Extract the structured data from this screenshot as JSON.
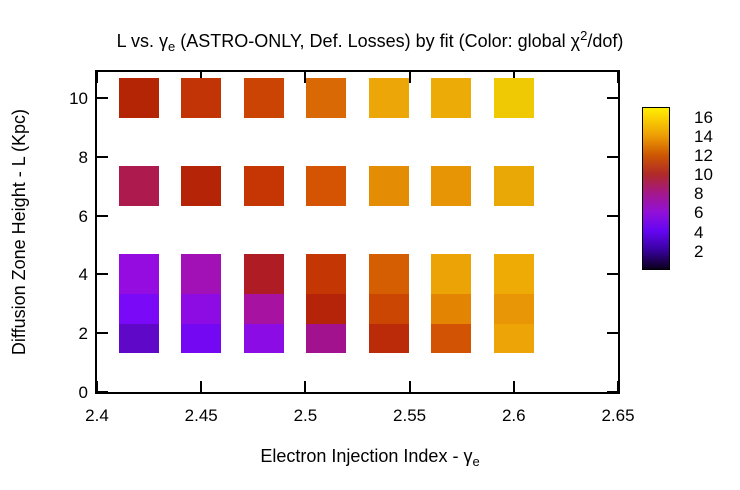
{
  "title_parts": [
    {
      "t": "L vs. "
    },
    {
      "t": "γ"
    },
    {
      "t": "e",
      "style": "sub"
    },
    {
      "t": " (ASTRO-ONLY, Def. Losses) by fit (Color: global "
    },
    {
      "t": "χ"
    },
    {
      "t": "2",
      "style": "sup"
    },
    {
      "t": "/dof)"
    }
  ],
  "xlabel_parts": [
    {
      "t": "Electron Injection Index - "
    },
    {
      "t": "γ"
    },
    {
      "t": "e",
      "style": "sub"
    }
  ],
  "ylabel": "Diffusion Zone Height - L (Kpc)",
  "chart_data": {
    "type": "heatmap",
    "title": "L vs. γ_e (ASTRO-ONLY, Def. Losses) by fit (Color: global χ²/dof)",
    "xlabel": "Electron Injection Index - γ_e",
    "ylabel": "Diffusion Zone Height - L (Kpc)",
    "grid": false,
    "marker": "filled-square",
    "xlim": [
      2.4,
      2.65
    ],
    "ylim": [
      0,
      10.9
    ],
    "x_tick_labels": [
      "2.4",
      "2.45",
      "2.5",
      "2.55",
      "2.6",
      "2.65"
    ],
    "x_tick_values": [
      2.4,
      2.45,
      2.5,
      2.55,
      2.6,
      2.65
    ],
    "y_tick_labels": [
      "0",
      "2",
      "4",
      "6",
      "8",
      "10"
    ],
    "y_tick_values": [
      0,
      2,
      4,
      6,
      8,
      10
    ],
    "x_values": [
      2.42,
      2.45,
      2.48,
      2.51,
      2.54,
      2.57,
      2.6
    ],
    "L_values": [
      2,
      3,
      4,
      7,
      10
    ],
    "series": [
      {
        "L": 2,
        "colors": [
          "#6008c8",
          "#7408f2",
          "#8c0ce6",
          "#a3128e",
          "#bb2b0a",
          "#d35304",
          "#eca406"
        ],
        "chi2_dof_est": [
          3.9,
          4.4,
          5.5,
          7.4,
          10.9,
          12.3,
          14.2
        ]
      },
      {
        "L": 3,
        "colors": [
          "#7a09f7",
          "#8d0ce3",
          "#a812a0",
          "#b52408",
          "#cc4603",
          "#e48403",
          "#e89506"
        ],
        "chi2_dof_est": [
          4.6,
          5.6,
          7.2,
          10.8,
          11.6,
          13.6,
          14.0
        ]
      },
      {
        "L": 4,
        "colors": [
          "#940ce0",
          "#a111b5",
          "#b01c24",
          "#c43604",
          "#d55e03",
          "#eca306",
          "#eeab06"
        ],
        "chi2_dof_est": [
          5.8,
          6.8,
          10.1,
          11.4,
          12.6,
          14.2,
          14.4
        ]
      },
      {
        "L": 7,
        "colors": [
          "#ad1a4d",
          "#b52407",
          "#c63604",
          "#d55403",
          "#e58c05",
          "#e89505",
          "#eaa806"
        ],
        "chi2_dof_est": [
          8.7,
          10.8,
          11.4,
          12.4,
          13.8,
          14.0,
          14.3
        ]
      },
      {
        "L": 10,
        "colors": [
          "#b32505",
          "#c23305",
          "#cc4403",
          "#d96905",
          "#eda607",
          "#ecab07",
          "#f0c905"
        ],
        "chi2_dof_est": [
          10.6,
          11.2,
          11.8,
          12.8,
          14.3,
          14.4,
          15.4
        ]
      }
    ],
    "colorbar": {
      "tick_labels": [
        "2",
        "4",
        "6",
        "8",
        "10",
        "12",
        "14",
        "16"
      ],
      "tick_values": [
        2,
        4,
        6,
        8,
        10,
        12,
        14,
        16
      ],
      "range": [
        0,
        17
      ],
      "gradient_stops": [
        {
          "value": 0,
          "color": "#0b001c"
        },
        {
          "value": 2,
          "color": "#38019e"
        },
        {
          "value": 4,
          "color": "#6405f2"
        },
        {
          "value": 6,
          "color": "#9110d8"
        },
        {
          "value": 8,
          "color": "#a4188a"
        },
        {
          "value": 10,
          "color": "#b02a28"
        },
        {
          "value": 12,
          "color": "#cc5603"
        },
        {
          "value": 14,
          "color": "#ec9b04"
        },
        {
          "value": 16,
          "color": "#fbd303"
        },
        {
          "value": 17,
          "color": "#ffee00"
        }
      ]
    }
  }
}
